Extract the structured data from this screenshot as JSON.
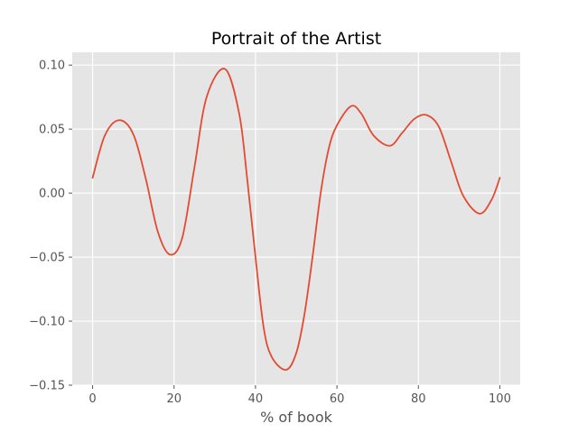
{
  "chart_data": {
    "type": "line",
    "title": "Portrait of the Artist",
    "xlabel": "% of book",
    "ylabel": "",
    "xlim": [
      -5,
      105
    ],
    "ylim": [
      -0.15,
      0.11
    ],
    "x_ticks": [
      0,
      20,
      40,
      60,
      80,
      100
    ],
    "x_tick_labels": [
      "0",
      "20",
      "40",
      "60",
      "80",
      "100"
    ],
    "y_ticks": [
      -0.15,
      -0.1,
      -0.05,
      0.0,
      0.05,
      0.1
    ],
    "y_tick_labels": [
      "−0.15",
      "−0.10",
      "−0.05",
      "0.00",
      "0.05",
      "0.10"
    ],
    "grid": true,
    "background": "#e5e5e5",
    "series": [
      {
        "color": "#e24a33",
        "x": [
          0,
          3,
          6.5,
          10,
          13,
          16,
          19,
          22,
          25,
          28,
          32.5,
          36,
          38,
          40,
          42,
          44,
          47.5,
          50,
          52,
          54,
          56,
          58,
          60,
          63.5,
          66,
          69,
          73,
          76,
          79,
          82,
          85,
          88,
          91,
          95,
          98,
          100
        ],
        "y": [
          0.012,
          0.045,
          0.057,
          0.046,
          0.012,
          -0.03,
          -0.048,
          -0.035,
          0.02,
          0.075,
          0.097,
          0.062,
          0.01,
          -0.05,
          -0.105,
          -0.128,
          -0.138,
          -0.125,
          -0.095,
          -0.05,
          0.0,
          0.035,
          0.053,
          0.068,
          0.062,
          0.045,
          0.037,
          0.047,
          0.058,
          0.061,
          0.052,
          0.025,
          -0.002,
          -0.016,
          -0.005,
          0.012
        ]
      }
    ]
  }
}
